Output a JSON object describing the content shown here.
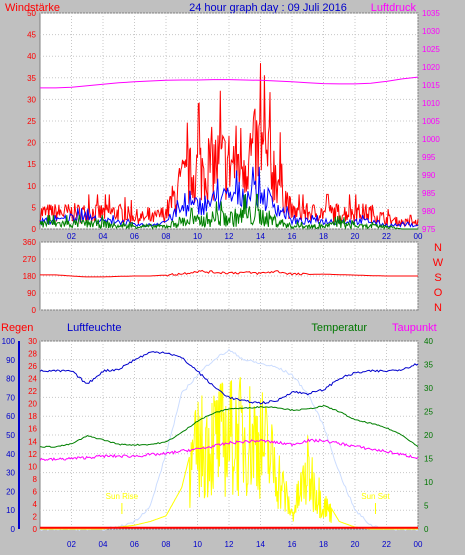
{
  "title": "24 hour graph day : 09 Juli 2016",
  "annotations": {
    "sunrise": "Sun Rise",
    "sunset": "Sun Set",
    "sunrise_hour": 5.2,
    "sunset_hour": 21.3
  },
  "x_ticks": [
    "02",
    "04",
    "06",
    "08",
    "10",
    "12",
    "14",
    "16",
    "18",
    "20",
    "22",
    "00"
  ],
  "colors": {
    "wind": "#ff0000",
    "gust": "#0000ff",
    "wind_avg": "#008000",
    "pressure": "#ff00ff",
    "direction": "#ff0000",
    "humidity": "#0000cc",
    "temperature": "#008000",
    "dewpoint": "#ff00ff",
    "solar": "#ffff00",
    "uv": "#ccddff",
    "rain": "#ff0000"
  },
  "panels": {
    "wind": {
      "left_title": "Windstärke",
      "right_title": "Luftdruck",
      "left_ticks": [
        "0",
        "5",
        "10",
        "15",
        "20",
        "25",
        "30",
        "35",
        "40",
        "45",
        "50"
      ],
      "right_ticks": [
        "975",
        "980",
        "985",
        "990",
        "995",
        "1000",
        "1005",
        "1010",
        "1015",
        "1020",
        "1025",
        "1030",
        "1035"
      ]
    },
    "direction": {
      "left_ticks": [
        "0",
        "90",
        "180",
        "270",
        "360"
      ],
      "letters": [
        "N",
        "W",
        "S",
        "O",
        "N"
      ]
    },
    "humidity": {
      "titles": {
        "rain": "Regen",
        "humidity": "Luftfeuchte",
        "temperature": "Temperatur",
        "dewpoint": "Taupunkt"
      },
      "humidity_ticks": [
        "0",
        "10",
        "20",
        "30",
        "40",
        "50",
        "60",
        "70",
        "80",
        "90",
        "100"
      ],
      "rain_ticks": [
        "0",
        "2",
        "4",
        "6",
        "8",
        "10",
        "12",
        "14",
        "16",
        "18",
        "20",
        "22",
        "24",
        "26",
        "28",
        "30"
      ],
      "temp_ticks": [
        "0",
        "5",
        "10",
        "15",
        "20",
        "25",
        "30",
        "35",
        "40"
      ]
    }
  },
  "chart_data": [
    {
      "type": "line",
      "title": "24 hour graph day : 09 Juli 2016",
      "xlabel": "",
      "x_hours": [
        0,
        1,
        2,
        3,
        4,
        5,
        6,
        7,
        8,
        9,
        10,
        11,
        12,
        13,
        14,
        15,
        16,
        17,
        18,
        19,
        20,
        21,
        22,
        23,
        24
      ],
      "y_left_label": "Windstärke",
      "y_left_range": [
        0,
        50
      ],
      "y_right_label": "Luftdruck",
      "y_right_range": [
        975,
        1035
      ],
      "series": [
        {
          "values": [
            5,
            5,
            5,
            5,
            5,
            5,
            4,
            3,
            5,
            14,
            18,
            20,
            20,
            22,
            24,
            17,
            5,
            5,
            5,
            5,
            5,
            5,
            3,
            2,
            2
          ]
        },
        {
          "values": [
            2,
            2,
            3,
            3,
            2,
            2,
            1,
            1,
            2,
            5,
            6,
            7,
            8,
            9,
            9,
            6,
            2,
            2,
            2,
            2,
            2,
            2,
            1,
            1,
            1
          ]
        },
        {
          "values": [
            2,
            2,
            2,
            2,
            2,
            1,
            1,
            1,
            1,
            3,
            3,
            4,
            4,
            5,
            5,
            3,
            1,
            1,
            1,
            2,
            1,
            1,
            1,
            0,
            0
          ]
        },
        {
          "axis": "right",
          "values": [
            1014.2,
            1014.2,
            1014.4,
            1014.8,
            1015.2,
            1015.6,
            1015.9,
            1016.1,
            1016.3,
            1016.4,
            1016.4,
            1016.5,
            1016.5,
            1016.4,
            1016.3,
            1016.1,
            1015.9,
            1015.6,
            1015.4,
            1015.3,
            1015.3,
            1015.5,
            1016.0,
            1016.7,
            1017.2
          ]
        }
      ],
      "grid": true,
      "legend": "none"
    },
    {
      "type": "line",
      "y_left_range": [
        0,
        360
      ],
      "x_hours": [
        0,
        1,
        2,
        3,
        4,
        5,
        6,
        7,
        8,
        9,
        10,
        11,
        12,
        13,
        14,
        15,
        16,
        17,
        18,
        19,
        20,
        21,
        22,
        23,
        24
      ],
      "series": [
        {
          "values": [
            186,
            186,
            180,
            175,
            175,
            178,
            180,
            180,
            185,
            192,
            205,
            200,
            197,
            198,
            194,
            205,
            190,
            188,
            190,
            187,
            185,
            182,
            180,
            180,
            180
          ]
        }
      ],
      "grid": true
    },
    {
      "type": "line",
      "x_hours": [
        0,
        1,
        2,
        3,
        4,
        5,
        6,
        7,
        8,
        9,
        10,
        11,
        12,
        13,
        14,
        15,
        16,
        17,
        18,
        19,
        20,
        21,
        22,
        23,
        24
      ],
      "y_humidity_range": [
        0,
        100
      ],
      "y_rain_range": [
        0,
        30
      ],
      "y_temp_range": [
        0,
        40
      ],
      "series": [
        {
          "axis": "humidity",
          "values": [
            84,
            84,
            84,
            77,
            84,
            85,
            90,
            94,
            94,
            91,
            84,
            76,
            70,
            68,
            67,
            68,
            73,
            72,
            74,
            80,
            83,
            84,
            84,
            85,
            88
          ]
        },
        {
          "axis": "temperature",
          "values": [
            17.5,
            17.5,
            18.1,
            19.8,
            19.0,
            18.0,
            17.9,
            18.0,
            18.5,
            20.5,
            23.0,
            24.6,
            25.6,
            25.7,
            26.0,
            25.9,
            25.3,
            25.5,
            26.2,
            25.0,
            23.2,
            22.5,
            21.5,
            20.0,
            17.5
          ]
        },
        {
          "axis": "temperature",
          "values": [
            14.8,
            14.8,
            15.0,
            15.2,
            15.5,
            15.5,
            15.5,
            15.8,
            16.0,
            16.6,
            17.0,
            17.6,
            18.3,
            18.6,
            18.8,
            18.4,
            18.0,
            18.8,
            18.8,
            18.2,
            17.6,
            17.0,
            16.5,
            15.8,
            15.2
          ]
        },
        {
          "axis": "humidity",
          "values": [
            0,
            0,
            0,
            0,
            0,
            1,
            4,
            12,
            40,
            72,
            82,
            90,
            95,
            90,
            88,
            86,
            82,
            72,
            55,
            30,
            10,
            2,
            0,
            0,
            0
          ]
        },
        {
          "axis": "humidity",
          "values": [
            0,
            0,
            0,
            0,
            0,
            1,
            2,
            4,
            7,
            22,
            56,
            63,
            65,
            66,
            63,
            42,
            10,
            40,
            18,
            4,
            1,
            0,
            0,
            0,
            0
          ]
        },
        {
          "axis": "rain",
          "values": [
            0.2,
            0.2,
            0.2,
            0.2,
            0.2,
            0.2,
            0.2,
            0.2,
            0.2,
            0.2,
            0.2,
            0.2,
            0.2,
            0.2,
            0.2,
            0.2,
            0.2,
            0.2,
            0.2,
            0.2,
            0.2,
            0.2,
            0.2,
            0.2,
            0.2
          ]
        }
      ],
      "grid": true
    }
  ]
}
